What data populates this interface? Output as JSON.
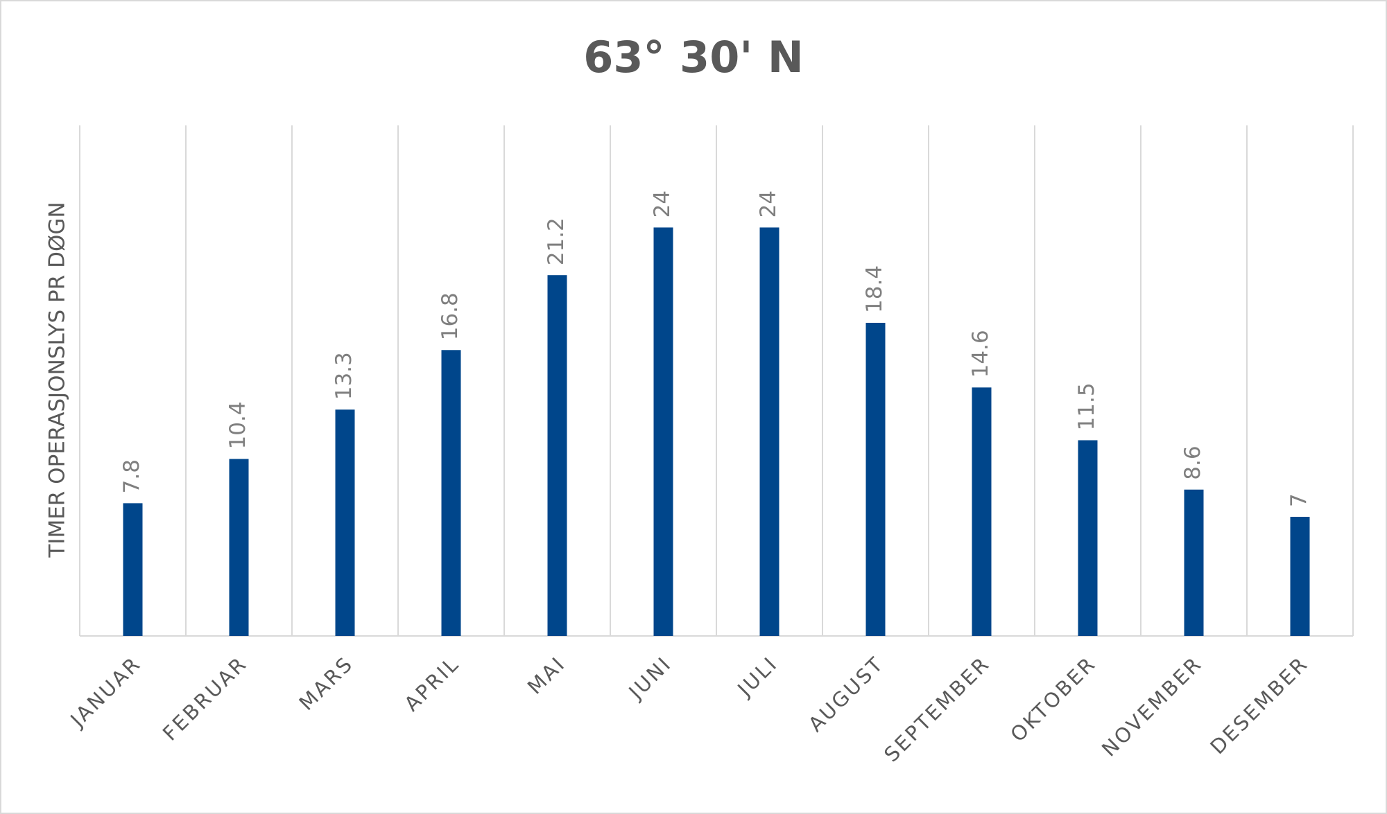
{
  "chart_data": {
    "type": "bar",
    "title": "63° 30' N",
    "y_label": "TIMER OPERASJONSLYS PR DØGN",
    "categories": [
      "JANUAR",
      "FEBRUAR",
      "MARS",
      "APRIL",
      "MAI",
      "JUNI",
      "JULI",
      "AUGUST",
      "SEPTEMBER",
      "OKTOBER",
      "NOVEMBER",
      "DESEMBER"
    ],
    "values": [
      7.8,
      10.4,
      13.3,
      16.8,
      21.2,
      24,
      24,
      18.4,
      14.6,
      11.5,
      8.6,
      7
    ],
    "color": "#00468b",
    "ylim": [
      0,
      30
    ],
    "grid": true
  }
}
